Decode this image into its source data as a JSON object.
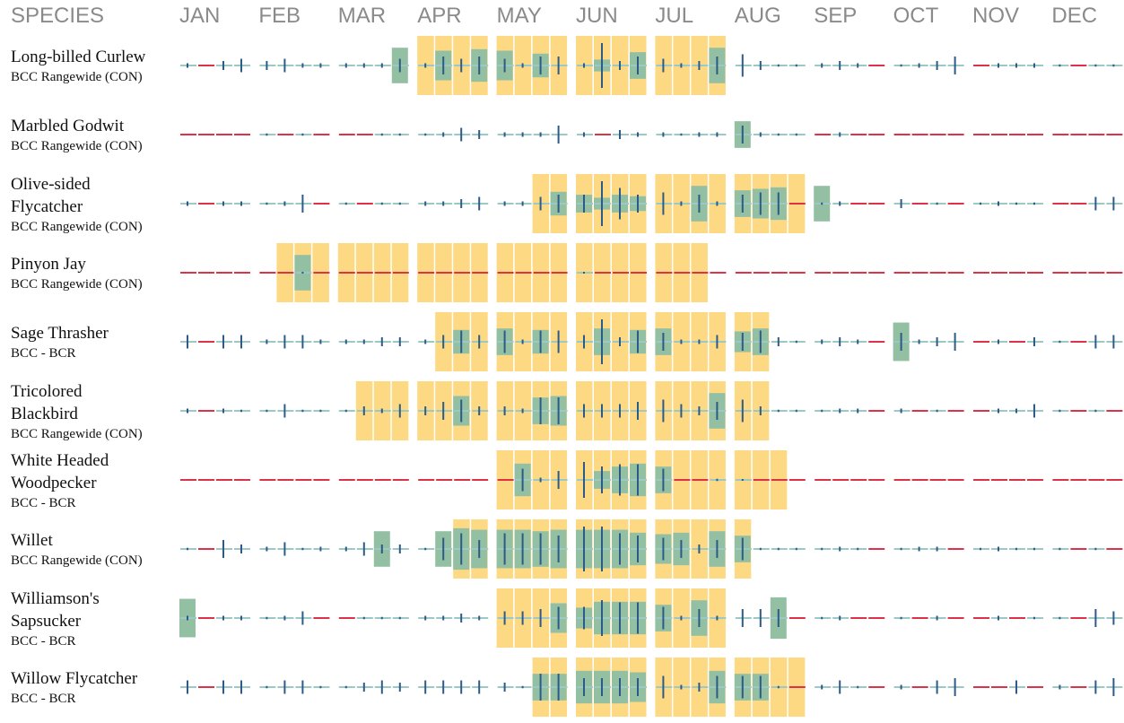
{
  "header": {
    "species": "SPECIES",
    "months": [
      "JAN",
      "FEB",
      "MAR",
      "APR",
      "MAY",
      "JUN",
      "JUL",
      "AUG",
      "SEP",
      "OCT",
      "NOV",
      "DEC"
    ]
  },
  "species": [
    {
      "name": [
        "Long-billed Curlew"
      ],
      "status": "BCC Rangewide (CON)",
      "breeding": [
        0,
        0,
        0,
        0,
        0,
        0,
        0,
        0,
        0,
        0,
        0,
        0,
        1,
        1,
        1,
        1,
        1,
        1,
        1,
        1,
        1,
        1,
        1,
        1,
        1,
        1,
        1,
        1,
        0,
        0,
        0,
        0,
        0,
        0,
        0,
        0,
        0,
        0,
        0,
        0,
        0,
        0,
        0,
        0,
        0,
        0,
        0,
        0
      ],
      "presence": [
        0,
        0,
        0,
        0,
        0,
        0,
        0,
        0,
        0,
        0,
        0,
        6,
        0,
        5,
        0,
        5.5,
        5,
        0,
        4,
        0,
        0,
        2,
        0,
        4.5,
        0,
        0,
        0,
        6,
        0,
        0,
        0,
        0,
        0,
        0,
        0,
        0,
        0,
        0,
        0,
        0,
        0,
        0,
        0,
        0,
        0,
        0,
        0,
        0
      ],
      "effort": [
        1,
        null,
        2,
        3,
        2,
        3,
        1,
        1,
        1,
        1,
        1,
        3,
        1,
        4,
        3,
        4,
        3,
        1,
        4,
        4,
        1,
        10,
        2,
        4,
        3,
        1,
        2,
        4,
        5,
        2,
        0.5,
        0.5,
        1,
        2,
        1,
        null,
        0.5,
        1,
        2,
        4,
        null,
        1,
        1,
        1,
        0.5,
        null,
        0.5,
        0.5
      ]
    },
    {
      "name": [
        "Marbled Godwit"
      ],
      "status": "BCC Rangewide (CON)",
      "breeding": [
        0,
        0,
        0,
        0,
        0,
        0,
        0,
        0,
        0,
        0,
        0,
        0,
        0,
        0,
        0,
        0,
        0,
        0,
        0,
        0,
        0,
        0,
        0,
        0,
        0,
        0,
        0,
        0,
        0,
        0,
        0,
        0,
        0,
        0,
        0,
        0,
        0,
        0,
        0,
        0,
        0,
        0,
        0,
        0,
        0,
        0,
        0,
        0
      ],
      "presence": [
        0,
        0,
        0,
        0,
        0,
        0,
        0,
        0,
        0,
        0,
        0,
        0,
        0,
        0,
        0,
        0,
        0,
        0,
        0,
        0,
        0,
        0,
        0,
        0,
        0,
        0,
        0,
        0,
        4.5,
        0,
        0,
        0,
        0,
        0,
        0,
        0,
        0,
        0,
        0,
        0,
        0,
        0,
        0,
        0,
        0,
        0,
        0,
        0
      ],
      "effort": [
        null,
        null,
        null,
        null,
        0.5,
        null,
        0.5,
        null,
        null,
        null,
        0.5,
        0.5,
        0.5,
        1,
        3,
        2,
        1,
        1,
        1,
        4,
        1,
        null,
        2,
        1,
        1,
        0.5,
        1,
        1,
        4,
        1,
        0.5,
        0.5,
        null,
        1,
        null,
        null,
        null,
        null,
        null,
        null,
        null,
        null,
        null,
        null,
        null,
        null,
        null,
        null
      ]
    },
    {
      "name": [
        "Olive-sided",
        "Flycatcher"
      ],
      "status": "BCC Rangewide (CON)",
      "breeding": [
        0,
        0,
        0,
        0,
        0,
        0,
        0,
        0,
        0,
        0,
        0,
        0,
        0,
        0,
        0,
        0,
        0,
        0,
        1,
        1,
        1,
        1,
        1,
        1,
        1,
        1,
        1,
        1,
        1,
        1,
        1,
        1,
        0,
        0,
        0,
        0,
        0,
        0,
        0,
        0,
        0,
        0,
        0,
        0,
        0,
        0,
        0,
        0
      ],
      "presence": [
        0,
        0,
        0,
        0,
        0,
        0,
        0,
        0,
        0,
        0,
        0,
        0,
        0,
        0,
        0,
        0,
        0,
        0,
        0,
        4,
        3,
        2,
        3,
        2.5,
        0,
        0,
        6,
        0,
        4.5,
        5,
        5.5,
        0,
        6,
        0,
        0,
        0,
        0,
        0,
        0,
        0,
        0,
        0,
        0,
        0,
        0,
        0,
        0,
        0
      ],
      "effort": [
        1,
        null,
        1,
        1,
        0.5,
        1,
        4,
        null,
        0.5,
        null,
        0.5,
        0.5,
        1,
        1,
        2,
        3,
        1,
        1,
        3,
        4,
        4,
        10,
        7,
        4,
        5,
        1,
        4,
        1,
        4,
        5,
        5,
        null,
        0.5,
        1,
        null,
        null,
        2,
        null,
        0.5,
        null,
        0.5,
        1,
        0.5,
        0.5,
        null,
        null,
        3,
        3
      ]
    },
    {
      "name": [
        "Pinyon Jay"
      ],
      "status": "BCC Rangewide (CON)",
      "breeding": [
        0,
        0,
        0,
        0,
        0,
        1,
        1,
        1,
        1,
        1,
        1,
        1,
        1,
        1,
        1,
        1,
        1,
        1,
        1,
        1,
        1,
        1,
        1,
        1,
        1,
        1,
        1,
        0,
        0,
        0,
        0,
        0,
        0,
        0,
        0,
        0,
        0,
        0,
        0,
        0,
        0,
        0,
        0,
        0,
        0,
        0,
        0,
        0
      ],
      "presence": [
        0,
        0,
        0,
        0,
        0,
        0,
        6,
        0,
        0,
        0,
        0,
        0,
        0,
        0,
        0,
        0,
        0,
        0,
        0,
        0,
        0,
        0,
        0,
        0,
        0,
        0,
        0,
        0,
        0,
        0,
        0,
        0,
        0,
        0,
        0,
        0,
        0,
        0,
        0,
        0,
        0,
        0,
        0,
        0,
        0,
        0,
        0,
        0
      ],
      "effort": [
        null,
        null,
        null,
        null,
        null,
        null,
        0.3,
        null,
        null,
        null,
        null,
        null,
        null,
        null,
        null,
        null,
        null,
        null,
        null,
        null,
        0.3,
        null,
        null,
        null,
        null,
        null,
        null,
        null,
        null,
        null,
        null,
        null,
        null,
        null,
        null,
        null,
        null,
        null,
        null,
        null,
        null,
        null,
        null,
        null,
        null,
        null,
        null,
        null
      ]
    },
    {
      "name": [
        "Sage Thrasher"
      ],
      "status": "BCC - BCR",
      "breeding": [
        0,
        0,
        0,
        0,
        0,
        0,
        0,
        0,
        0,
        0,
        0,
        0,
        0,
        1,
        1,
        1,
        1,
        1,
        1,
        1,
        1,
        1,
        1,
        1,
        1,
        1,
        1,
        1,
        1,
        1,
        0,
        0,
        0,
        0,
        0,
        0,
        0,
        0,
        0,
        0,
        0,
        0,
        0,
        0,
        0,
        0,
        0,
        0
      ],
      "presence": [
        0,
        0,
        0,
        0,
        0,
        0,
        0,
        0,
        0,
        0,
        0,
        0,
        0,
        0,
        4,
        0,
        4.5,
        0,
        4,
        0,
        0,
        4.5,
        0,
        4,
        4.5,
        0,
        0,
        0,
        3.5,
        4.5,
        0,
        0,
        0,
        0,
        0,
        0,
        6.5,
        0,
        0,
        0,
        0,
        0,
        0,
        0,
        0,
        0,
        0,
        0
      ],
      "effort": [
        3,
        null,
        3,
        3,
        1,
        3,
        3,
        1,
        1,
        1,
        2,
        2,
        1,
        3,
        5,
        3,
        5,
        1,
        5,
        5,
        3,
        10,
        2,
        5,
        4,
        1,
        1,
        3,
        4,
        5,
        2,
        0.5,
        1,
        2,
        1,
        null,
        4,
        1,
        2,
        4,
        null,
        1,
        null,
        2,
        0.5,
        null,
        3,
        3
      ]
    },
    {
      "name": [
        "Tricolored",
        "Blackbird"
      ],
      "status": "BCC Rangewide (CON)",
      "breeding": [
        0,
        0,
        0,
        0,
        0,
        0,
        0,
        0,
        0,
        1,
        1,
        1,
        1,
        1,
        1,
        1,
        1,
        1,
        1,
        1,
        1,
        1,
        1,
        1,
        1,
        1,
        1,
        1,
        1,
        1,
        0,
        0,
        0,
        0,
        0,
        0,
        0,
        0,
        0,
        0,
        0,
        0,
        0,
        0,
        0,
        0,
        0,
        0
      ],
      "presence": [
        0,
        0,
        0,
        0,
        0,
        0,
        0,
        0,
        0,
        0,
        0,
        0,
        0,
        0,
        5,
        0,
        0,
        0,
        4.5,
        5,
        0,
        0,
        0,
        0,
        0,
        0,
        0,
        6,
        0,
        0,
        0,
        0,
        0,
        0,
        0,
        0,
        0,
        0,
        0,
        0,
        0,
        0,
        0,
        0,
        0,
        0,
        0,
        0
      ],
      "effort": [
        1,
        null,
        1,
        0.5,
        0.5,
        3,
        0.5,
        0.5,
        0.5,
        2,
        1,
        3,
        2,
        4,
        5,
        2,
        2,
        1,
        6,
        6,
        3,
        3,
        3,
        4,
        5,
        3,
        2,
        4,
        5,
        2,
        0.5,
        0.5,
        0.5,
        1,
        1,
        null,
        1,
        null,
        0.5,
        null,
        null,
        1,
        1,
        3,
        0.5,
        null,
        0.5,
        null
      ]
    },
    {
      "name": [
        "White Headed",
        "Woodpecker"
      ],
      "status": "BCC - BCR",
      "breeding": [
        0,
        0,
        0,
        0,
        0,
        0,
        0,
        0,
        0,
        0,
        0,
        0,
        0,
        0,
        0,
        0,
        1,
        1,
        1,
        1,
        1,
        1,
        1,
        1,
        1,
        1,
        1,
        1,
        1,
        1,
        1,
        0,
        0,
        0,
        0,
        0,
        0,
        0,
        0,
        0,
        0,
        0,
        0,
        0,
        0,
        0,
        0,
        0
      ],
      "presence": [
        0,
        0,
        0,
        0,
        0,
        0,
        0,
        0,
        0,
        0,
        0,
        0,
        0,
        0,
        0,
        0,
        0,
        5.5,
        0,
        0,
        0,
        3,
        4.5,
        5.5,
        4.5,
        0,
        0,
        0,
        0,
        0,
        0,
        0,
        0,
        0,
        0,
        0,
        0,
        0,
        0,
        0,
        0,
        0,
        0,
        0,
        0,
        0,
        0,
        0
      ],
      "effort": [
        null,
        null,
        null,
        null,
        null,
        null,
        null,
        null,
        null,
        null,
        null,
        null,
        null,
        null,
        null,
        null,
        null,
        5,
        1,
        4,
        8,
        6,
        7,
        7,
        5,
        null,
        null,
        0.5,
        0.3,
        null,
        null,
        null,
        null,
        null,
        null,
        null,
        null,
        null,
        null,
        null,
        null,
        null,
        null,
        null,
        null,
        null,
        null,
        null
      ]
    },
    {
      "name": [
        "Willet"
      ],
      "status": "BCC Rangewide (CON)",
      "breeding": [
        0,
        0,
        0,
        0,
        0,
        0,
        0,
        0,
        0,
        0,
        0,
        0,
        0,
        0,
        1,
        1,
        1,
        1,
        1,
        1,
        1,
        1,
        1,
        1,
        1,
        1,
        1,
        1,
        1,
        0,
        0,
        0,
        0,
        0,
        0,
        0,
        0,
        0,
        0,
        0,
        0,
        0,
        0,
        0,
        0,
        0,
        0,
        0
      ],
      "presence": [
        0,
        0,
        0,
        0,
        0,
        0,
        0,
        0,
        0,
        0,
        6,
        0,
        0,
        6,
        7,
        6.5,
        6.5,
        6.5,
        6,
        6.5,
        6.5,
        6.5,
        6.5,
        5.5,
        5,
        5.5,
        0,
        6,
        4.5,
        0,
        0,
        0,
        0,
        0,
        0,
        0,
        0,
        0,
        0,
        0,
        0,
        0,
        0,
        0,
        0,
        0,
        0,
        0
      ],
      "effort": [
        0.5,
        null,
        4,
        2,
        1,
        3,
        0.5,
        1,
        1,
        3,
        2,
        2,
        0.5,
        5,
        7,
        4,
        7,
        7,
        7,
        6,
        10,
        10,
        7,
        6,
        5,
        4,
        2,
        4,
        5,
        0.5,
        0.5,
        0.5,
        0.5,
        1,
        0.5,
        null,
        0.5,
        1,
        1,
        null,
        0.5,
        1,
        0.5,
        0.5,
        0.5,
        null,
        0.5,
        null
      ]
    },
    {
      "name": [
        "Williamson's",
        "Sapsucker"
      ],
      "status": "BCC - BCR",
      "breeding": [
        0,
        0,
        0,
        0,
        0,
        0,
        0,
        0,
        0,
        0,
        0,
        0,
        0,
        0,
        0,
        0,
        1,
        1,
        1,
        1,
        1,
        1,
        1,
        1,
        1,
        1,
        1,
        1,
        0,
        0,
        0,
        0,
        0,
        0,
        0,
        0,
        0,
        0,
        0,
        0,
        0,
        0,
        0,
        0,
        0,
        0,
        0,
        0
      ],
      "presence": [
        6.5,
        0,
        0,
        0,
        0,
        0,
        0,
        0,
        0,
        0,
        0,
        0,
        0,
        0,
        0,
        0,
        0,
        0,
        0,
        5,
        3.5,
        5.5,
        5.5,
        5.5,
        4.5,
        0,
        6,
        0,
        0,
        0,
        7,
        0,
        0,
        0,
        0,
        0,
        0,
        0,
        0,
        0,
        0,
        0,
        0,
        0,
        0,
        0,
        0,
        0
      ],
      "effort": [
        1,
        null,
        1,
        1,
        0.5,
        1,
        3,
        null,
        null,
        0.5,
        0.5,
        0.5,
        1,
        1,
        2,
        1,
        3,
        3,
        4,
        5,
        5,
        8,
        7,
        7,
        5,
        1,
        4,
        1,
        4,
        4,
        4,
        null,
        0.5,
        1,
        null,
        null,
        0.5,
        null,
        1,
        null,
        null,
        1,
        null,
        0.5,
        0.5,
        null,
        4,
        3
      ]
    },
    {
      "name": [
        "Willow Flycatcher"
      ],
      "status": "BCC - BCR",
      "breeding": [
        0,
        0,
        0,
        0,
        0,
        0,
        0,
        0,
        0,
        0,
        0,
        0,
        0,
        0,
        0,
        0,
        0,
        0,
        1,
        1,
        1,
        1,
        1,
        1,
        1,
        1,
        1,
        1,
        1,
        1,
        1,
        1,
        0,
        0,
        0,
        0,
        0,
        0,
        0,
        0,
        0,
        0,
        0,
        0,
        0,
        0,
        0,
        0
      ],
      "presence": [
        0,
        0,
        0,
        0,
        0,
        0,
        0,
        0,
        0,
        0,
        0,
        0,
        0,
        0,
        0,
        0,
        0,
        0,
        4.5,
        4.5,
        5.5,
        5.5,
        5.5,
        5,
        0,
        0,
        0,
        5.5,
        4.5,
        4.5,
        0,
        0,
        0,
        0,
        0,
        0,
        0,
        0,
        0,
        0,
        0,
        0,
        0,
        0,
        0,
        0,
        0,
        0
      ],
      "effort": [
        3,
        null,
        3,
        3,
        0.5,
        3,
        3,
        0.5,
        0.5,
        2,
        3,
        2,
        3,
        3,
        3,
        3,
        2,
        0.5,
        6,
        6,
        4,
        4,
        4,
        4,
        5,
        1,
        2,
        5,
        5,
        5,
        0.5,
        null,
        1,
        3,
        0.5,
        null,
        1,
        null,
        3,
        4,
        null,
        null,
        3,
        null,
        1,
        null,
        3,
        4
      ]
    }
  ]
}
